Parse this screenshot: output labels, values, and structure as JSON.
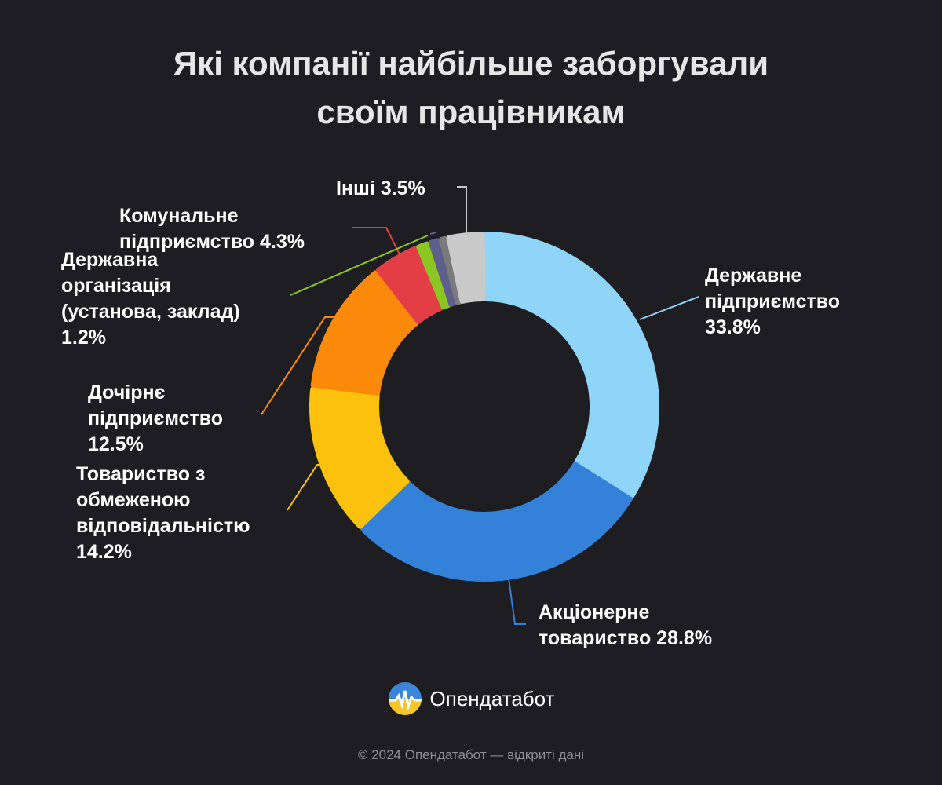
{
  "title": {
    "line1": "Які компанії найбільше заборгували",
    "line2": "своїм працівникам"
  },
  "chart_data": {
    "type": "pie",
    "variant": "donut",
    "title": "Які компанії найбільше заборгували своїм працівникам",
    "categories": [
      "Державне підприємство",
      "Акціонерне товариство",
      "Товариство з обмеженою відповідальністю",
      "Дочірнє підприємство",
      "Комунальне підприємство",
      "Державна організація (установа, заклад)",
      "",
      "",
      "Інші"
    ],
    "values": [
      33.8,
      28.8,
      14.2,
      12.5,
      4.3,
      1.2,
      1.0,
      0.7,
      3.5
    ],
    "colors": [
      "#8fd5fa",
      "#3381d8",
      "#fcc10d",
      "#fb8a0b",
      "#e33d46",
      "#8bc622",
      "#5f5f8c",
      "#7a7a7a",
      "#c9c9c9"
    ],
    "labels": [
      "Державне\nпідприємство\n33.8%",
      "Акціонерне\nтовариство 28.8%",
      "Товариство з\nобмеженою\nвідповідальністю\n14.2%",
      "Дочірнє\nпідприємство\n12.5%",
      "Комунальне\nпідприємство 4.3%",
      "Державна\nорганізація\n(установа, заклад)\n1.2%",
      "",
      "",
      "Інші 3.5%"
    ],
    "legend": "none"
  },
  "brand": {
    "name": "Опендатабот",
    "logo_icon": "opendatabot-logo-icon"
  },
  "footer": "© 2024 Опендатабот — відкриті дані"
}
